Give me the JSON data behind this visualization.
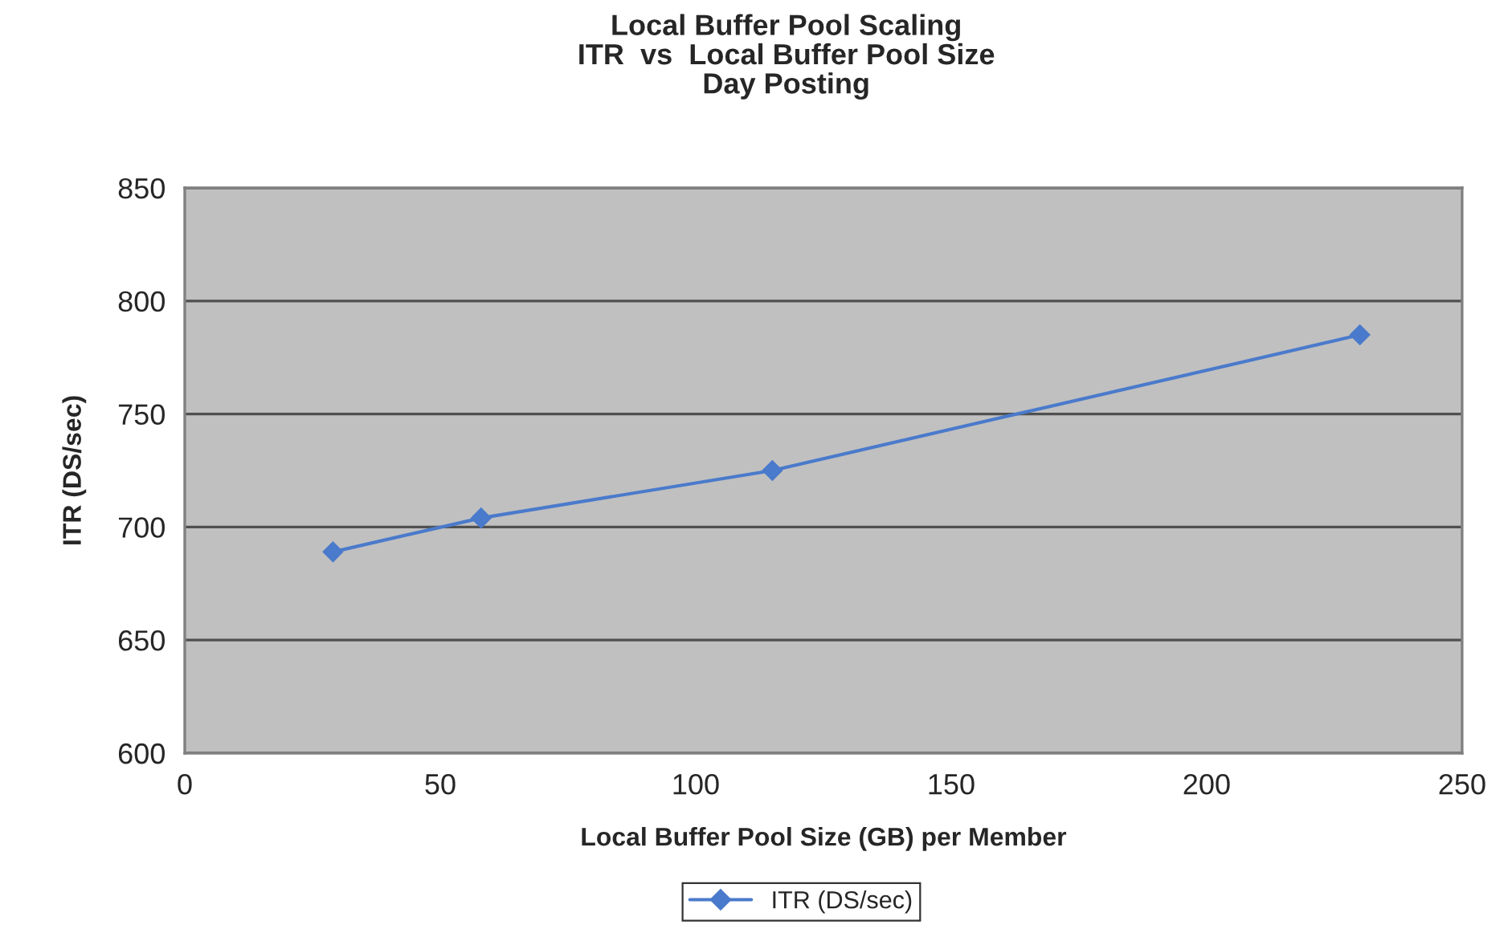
{
  "chart_data": {
    "type": "line",
    "title": "Local Buffer Pool Scaling\nITR  vs  Local Buffer Pool Size\nDay Posting",
    "xlabel": "Local Buffer Pool Size (GB) per Member",
    "ylabel": "ITR (DS/sec)",
    "x": [
      29,
      58,
      115,
      230
    ],
    "series": [
      {
        "name": "ITR (DS/sec)",
        "color": "#4a7acb",
        "values": [
          689,
          704,
          725,
          785
        ]
      }
    ],
    "xlim": [
      0,
      250
    ],
    "xticks": [
      0,
      50,
      100,
      150,
      200,
      250
    ],
    "ylim": [
      600,
      850
    ],
    "yticks": [
      600,
      650,
      700,
      750,
      800,
      850
    ],
    "grid": "y",
    "legend": "bottom",
    "marker": "diamond",
    "line_style": "solid"
  }
}
